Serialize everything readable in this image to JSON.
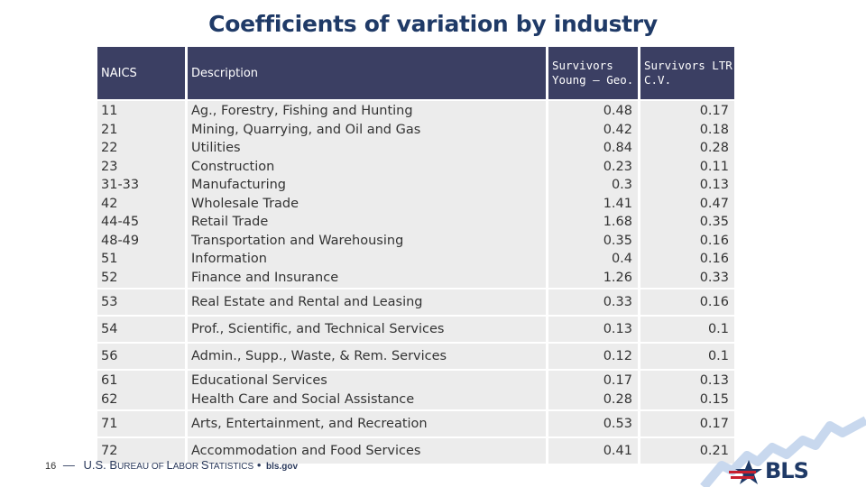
{
  "title": "Coefficients of variation by industry",
  "header": {
    "naics": "NAICS",
    "description": "Description",
    "survivors_young_line1": "Survivors",
    "survivors_young_line2": "Young – Geo.",
    "survivors_ltr_line1": "Survivors LTR",
    "survivors_ltr_line2": "C.V."
  },
  "groups": [
    {
      "codes": [
        "11",
        "21",
        "22",
        "23",
        "31-33",
        "42",
        "44-45",
        "48-49",
        "51",
        "52"
      ],
      "descs": [
        "Ag., Forestry, Fishing and Hunting",
        "Mining, Quarrying, and Oil and Gas",
        "Utilities",
        "Construction",
        "Manufacturing",
        "Wholesale Trade",
        "Retail Trade",
        "Transportation and Warehousing",
        "Information",
        "Finance and Insurance"
      ],
      "young": [
        "0.48",
        "0.42",
        "0.84",
        "0.23",
        "0.3",
        "1.41",
        "1.68",
        "0.35",
        "0.4",
        "1.26"
      ],
      "ltr": [
        "0.17",
        "0.18",
        "0.28",
        "0.11",
        "0.13",
        "0.47",
        "0.35",
        "0.16",
        "0.16",
        "0.33"
      ]
    },
    {
      "codes": [
        "53"
      ],
      "descs": [
        "Real Estate and Rental and Leasing"
      ],
      "young": [
        "0.33"
      ],
      "ltr": [
        "0.16"
      ]
    },
    {
      "codes": [
        "54"
      ],
      "descs": [
        "Prof., Scientific, and Technical Services"
      ],
      "young": [
        "0.13"
      ],
      "ltr": [
        "0.1"
      ]
    },
    {
      "codes": [
        "56"
      ],
      "descs": [
        "Admin., Supp., Waste, & Rem. Services"
      ],
      "young": [
        "0.12"
      ],
      "ltr": [
        "0.1"
      ]
    },
    {
      "codes": [
        "61",
        "62"
      ],
      "descs": [
        "Educational Services",
        "Health Care and Social Assistance"
      ],
      "young": [
        "0.17",
        "0.28"
      ],
      "ltr": [
        "0.13",
        "0.15"
      ]
    },
    {
      "codes": [
        "71"
      ],
      "descs": [
        "Arts, Entertainment, and Recreation"
      ],
      "young": [
        "0.53"
      ],
      "ltr": [
        "0.17"
      ]
    },
    {
      "codes": [
        "72"
      ],
      "descs": [
        "Accommodation and Food Services"
      ],
      "young": [
        "0.41"
      ],
      "ltr": [
        "0.21"
      ]
    }
  ],
  "footer": {
    "page_number": "16",
    "dash": "—",
    "agency_u": "U.S. B",
    "agency_ureau": "UREAU OF ",
    "agency_l": "L",
    "agency_abor": "ABOR ",
    "agency_s": "S",
    "agency_tatistics": "TATISTICS",
    "bullet": "•",
    "url": "bls.gov"
  },
  "logo": {
    "text": "BLS",
    "colors": {
      "blue": "#1f3a67",
      "red": "#c8202f",
      "light": "#c8d8ee"
    }
  }
}
